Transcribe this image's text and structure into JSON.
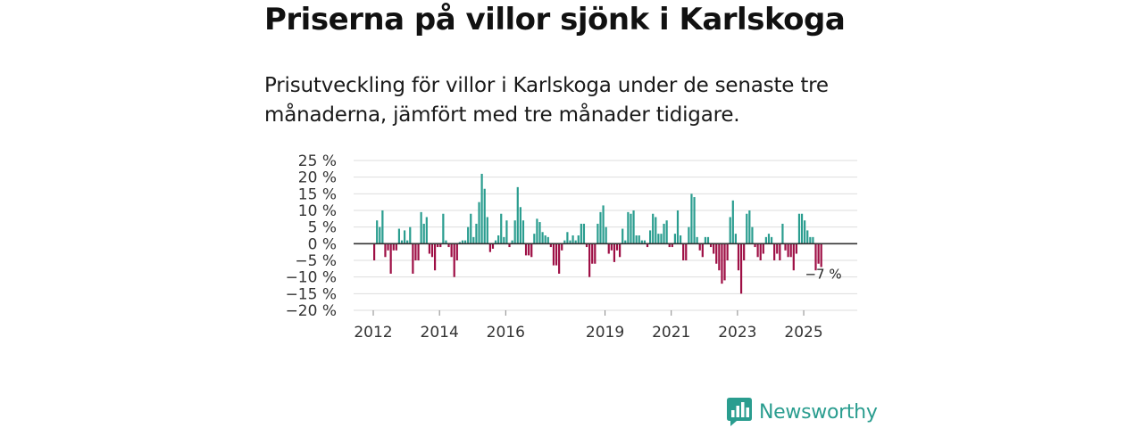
{
  "header": {
    "title": "Priserna på villor sjönk i Karlskoga",
    "subtitle": "Prisutveckling för villor i Karlskoga under de senaste tre månaderna, jämfört med tre månader tidigare."
  },
  "chart_data": {
    "type": "bar",
    "title": "Priserna på villor sjönk i Karlskoga",
    "subtitle": "Prisutveckling för villor i Karlskoga under de senaste tre månaderna, jämfört med tre månader tidigare.",
    "xlabel": "",
    "ylabel": "",
    "ylim": [
      -20,
      25
    ],
    "y_ticks": [
      25,
      20,
      15,
      10,
      5,
      0,
      -5,
      -10,
      -15,
      -20
    ],
    "y_tick_labels": [
      "25 %",
      "20 %",
      "15 %",
      "10 %",
      "5 %",
      "0 %",
      "−5 %",
      "−10 %",
      "−15 %",
      "−20 %"
    ],
    "x_ticks": [
      {
        "label": "2012",
        "year": 2012
      },
      {
        "label": "2014",
        "year": 2014
      },
      {
        "label": "2016",
        "year": 2016
      },
      {
        "label": "2019",
        "year": 2019
      },
      {
        "label": "2021",
        "year": 2021
      },
      {
        "label": "2023",
        "year": 2023
      },
      {
        "label": "2025",
        "year": 2025
      }
    ],
    "start": {
      "year": 2012,
      "month": 1
    },
    "unit": "%",
    "grid": true,
    "colors": {
      "positive": "#2a9d8f",
      "negative": "#9e0f45",
      "grid": "#dddddd",
      "zero": "#333333",
      "text": "#333333"
    },
    "values": [
      -5.0,
      7.0,
      5.0,
      10.0,
      -4.0,
      -2.0,
      -9.0,
      -2.0,
      -2.0,
      4.5,
      1.0,
      4.0,
      1.0,
      5.0,
      -9.0,
      -5.0,
      -5.0,
      9.5,
      6.0,
      8.0,
      -3.0,
      -4.0,
      -8.0,
      -1.0,
      -1.0,
      9.0,
      1.0,
      -1.0,
      -4.0,
      -10.0,
      -5.0,
      0.5,
      1.0,
      1.0,
      5.0,
      9.0,
      2.0,
      6.0,
      12.5,
      21.0,
      16.5,
      8.0,
      -2.5,
      -1.5,
      1.0,
      2.5,
      9.0,
      2.0,
      7.0,
      -1.0,
      1.0,
      7.0,
      17.0,
      11.0,
      7.0,
      -3.5,
      -3.5,
      -4.0,
      3.0,
      7.5,
      6.5,
      3.5,
      2.5,
      2.0,
      -1.0,
      -6.5,
      -6.5,
      -9.0,
      -2.0,
      1.0,
      3.5,
      1.0,
      2.5,
      1.0,
      2.5,
      6.0,
      6.0,
      -1.0,
      -10.0,
      -6.0,
      -6.0,
      6.0,
      9.5,
      11.5,
      5.0,
      -3.0,
      -2.0,
      -5.5,
      -2.0,
      -4.0,
      4.5,
      1.0,
      9.5,
      9.0,
      10.0,
      2.5,
      2.5,
      1.0,
      1.0,
      -1.0,
      4.0,
      9.0,
      8.0,
      3.0,
      3.0,
      6.0,
      7.0,
      -1.0,
      -1.0,
      3.0,
      10.0,
      2.5,
      -5.0,
      -5.0,
      5.0,
      15.0,
      14.0,
      2.0,
      -2.0,
      -4.0,
      2.0,
      2.0,
      -1.0,
      -3.0,
      -6.0,
      -8.0,
      -12.0,
      -11.0,
      -5.0,
      8.0,
      13.0,
      3.0,
      -8.0,
      -15.0,
      -5.0,
      9.0,
      10.0,
      5.0,
      -1.0,
      -4.0,
      -5.0,
      -3.0,
      2.0,
      3.0,
      2.0,
      -5.0,
      -3.0,
      -5.0,
      6.0,
      -2.0,
      -4.0,
      -4.0,
      -8.0,
      -3.0,
      9.0,
      9.0,
      7.0,
      4.0,
      2.0,
      2.0,
      -8.0,
      -6.0,
      -7.0
    ],
    "annotation": {
      "label": "−7 %",
      "value": -7
    }
  },
  "branding": {
    "logo_name": "chart-logo-icon",
    "brand_name": "Newsworthy",
    "brand_color": "#2a9d8f"
  }
}
